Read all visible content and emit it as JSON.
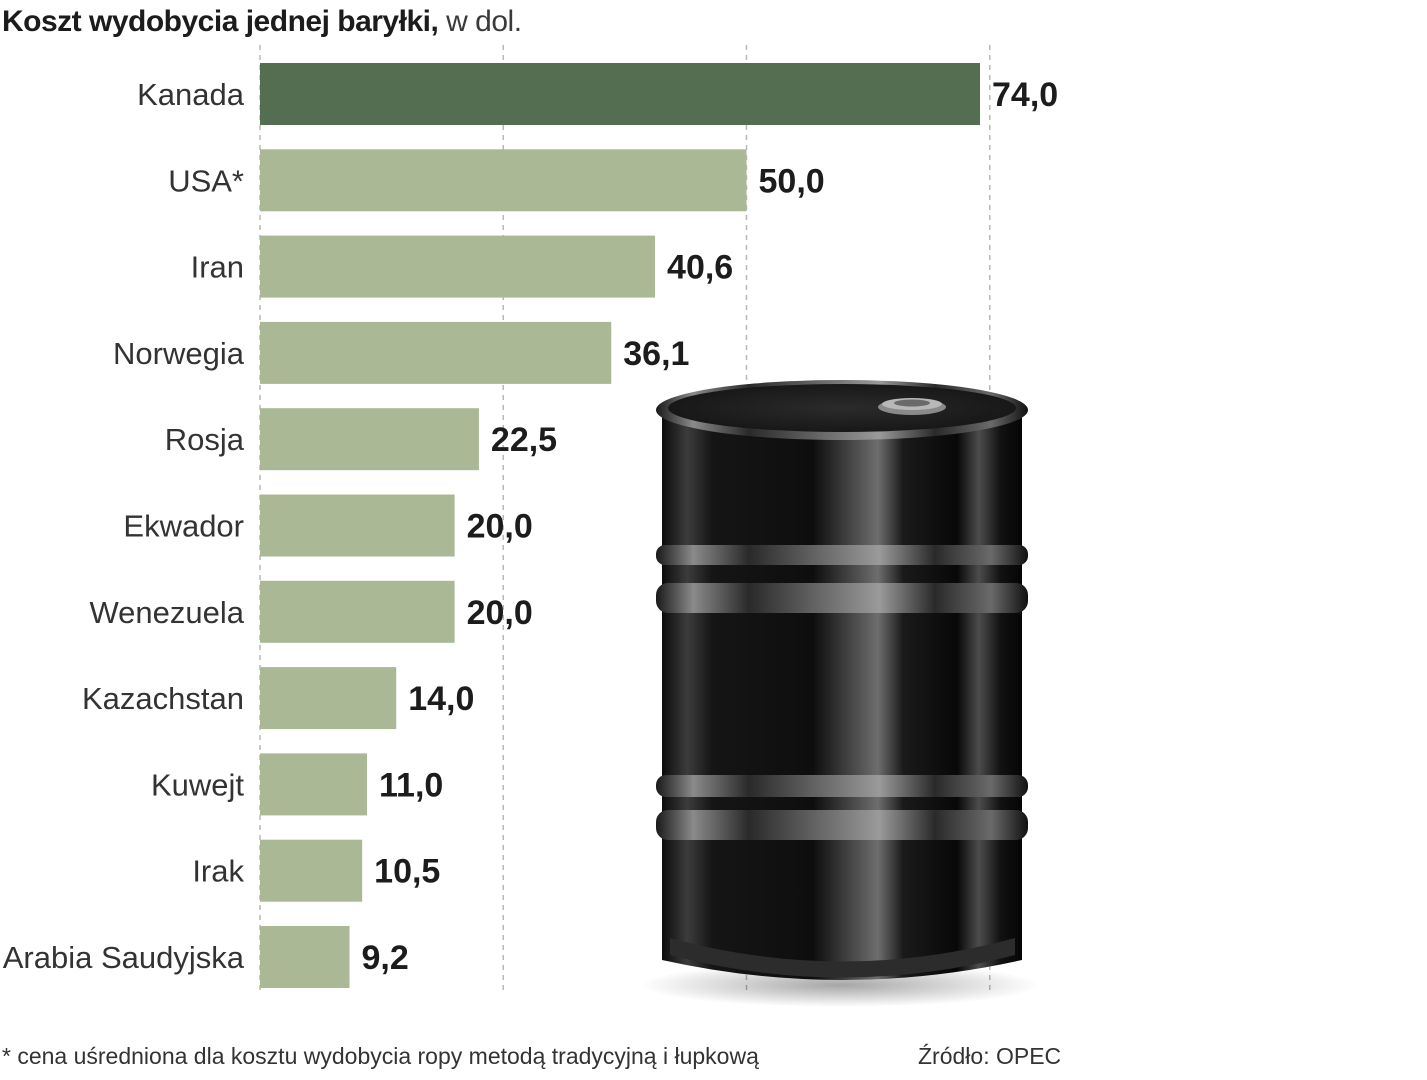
{
  "title": "Koszt wydobycia jednej baryłki,",
  "title_unit": "w dol.",
  "footnote": "* cena uśredniona dla kosztu wydobycia ropy metodą tradycyjną i łupkową",
  "source": "Źródło: OPEC",
  "colors": {
    "highlight": "#546e52",
    "bar": "#aab896",
    "gridline": "#b8b8b8"
  },
  "image_icon": "oil-barrel-icon",
  "chart_data": {
    "type": "bar",
    "orientation": "horizontal",
    "title": "Koszt wydobycia jednej baryłki, w dol.",
    "categories": [
      "Kanada",
      "USA*",
      "Iran",
      "Norwegia",
      "Rosja",
      "Ekwador",
      "Wenezuela",
      "Kazachstan",
      "Kuwejt",
      "Irak",
      "Arabia Saudyjska"
    ],
    "values": [
      74.0,
      50.0,
      40.6,
      36.1,
      22.5,
      20.0,
      20.0,
      14.0,
      11.0,
      10.5,
      9.2
    ],
    "value_labels": [
      "74,0",
      "50,0",
      "40,6",
      "36,1",
      "22,5",
      "20,0",
      "20,0",
      "14,0",
      "11,0",
      "10,5",
      "9,2"
    ],
    "highlighted_category": "Kanada",
    "xlim": [
      0,
      75
    ],
    "gridlines": [
      0,
      25,
      50,
      75
    ],
    "grid": true,
    "legend": false
  }
}
